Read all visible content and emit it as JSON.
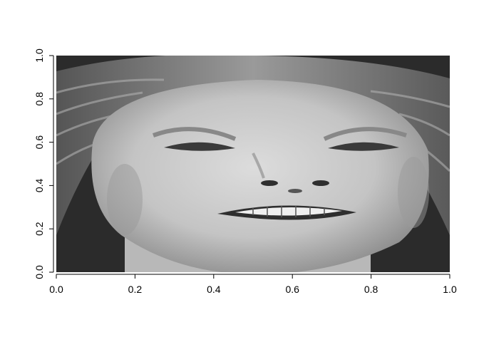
{
  "chart_data": {
    "type": "heatmap",
    "image_subject": "grayscale face image",
    "title": "",
    "xlabel": "",
    "ylabel": "",
    "xlim": [
      0,
      1
    ],
    "ylim": [
      0,
      1
    ],
    "x_ticks": [
      {
        "value": 0.0,
        "label": "0.0"
      },
      {
        "value": 0.2,
        "label": "0.2"
      },
      {
        "value": 0.4,
        "label": "0.4"
      },
      {
        "value": 0.6,
        "label": "0.6"
      },
      {
        "value": 0.8,
        "label": "0.8"
      },
      {
        "value": 1.0,
        "label": "1.0"
      }
    ],
    "y_ticks": [
      {
        "value": 0.0,
        "label": "0.0"
      },
      {
        "value": 0.2,
        "label": "0.2"
      },
      {
        "value": 0.4,
        "label": "0.4"
      },
      {
        "value": 0.6,
        "label": "0.6"
      },
      {
        "value": 0.8,
        "label": "0.8"
      },
      {
        "value": 1.0,
        "label": "1.0"
      }
    ],
    "colormap": "grayscale",
    "grid": false,
    "legend": "none"
  },
  "colors": {
    "background": "#ffffff",
    "axis": "#000000",
    "dark_bg": "#2a2a2a",
    "skin": "#c8c8c8",
    "skin_light": "#dedede",
    "hair": "#8a8a8a",
    "teeth": "#f0f0f0"
  }
}
